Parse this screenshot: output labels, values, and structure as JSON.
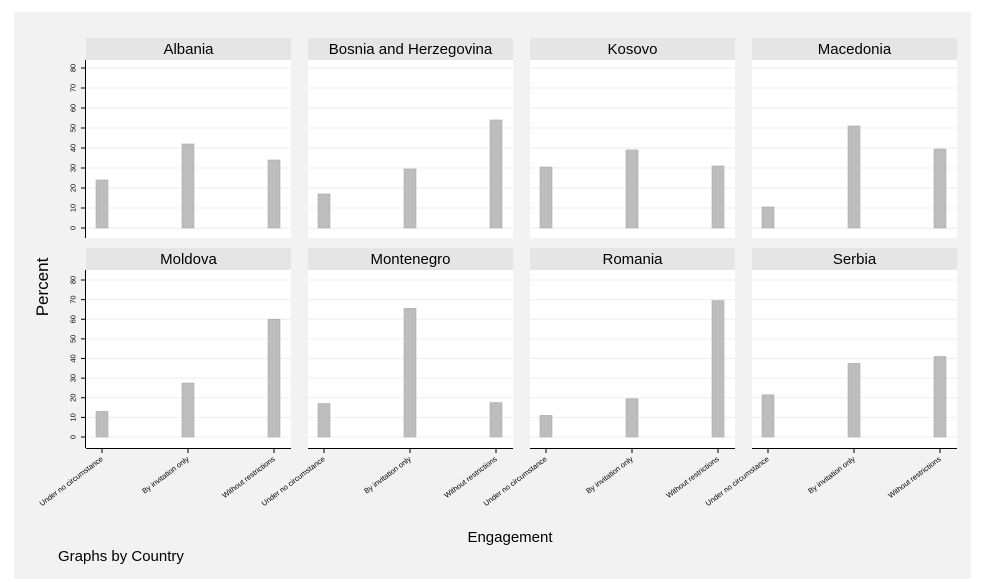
{
  "chart_data": {
    "type": "bar",
    "ylabel": "Percent",
    "xlabel": "Engagement",
    "note": "Graphs by Country",
    "categories": [
      "Under no circumstance",
      "By invitation only",
      "Without restrictions"
    ],
    "yticks": [
      0,
      10,
      20,
      30,
      40,
      50,
      60,
      70,
      80
    ],
    "ylim": [
      0,
      80
    ],
    "grid": true,
    "colors": {
      "bar": "#bdbdbd",
      "bar_edge": "#a8a8a8",
      "panel_header": "#e5e5e5",
      "background": "#f2f2f2",
      "plot_bg": "#ffffff",
      "grid": "#eeeeee"
    },
    "panels": [
      {
        "name": "Albania",
        "values": [
          24,
          42,
          34
        ]
      },
      {
        "name": "Bosnia and Herzegovina",
        "values": [
          17,
          29.5,
          54
        ]
      },
      {
        "name": "Kosovo",
        "values": [
          30.5,
          39,
          31
        ]
      },
      {
        "name": "Macedonia",
        "values": [
          10.5,
          51,
          39.5
        ]
      },
      {
        "name": "Moldova",
        "values": [
          13,
          27.5,
          60
        ]
      },
      {
        "name": "Montenegro",
        "values": [
          17,
          65.5,
          17.5
        ]
      },
      {
        "name": "Romania",
        "values": [
          11,
          19.5,
          69.5
        ]
      },
      {
        "name": "Serbia",
        "values": [
          21.5,
          37.5,
          41
        ]
      }
    ]
  }
}
